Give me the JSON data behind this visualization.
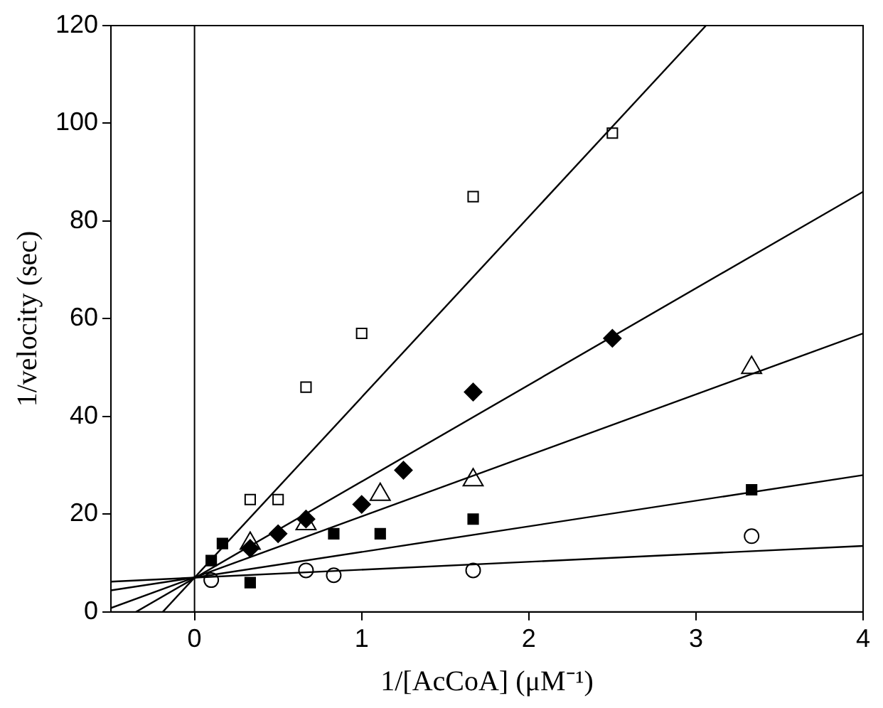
{
  "chart_data": {
    "type": "scatter",
    "xlabel": "1/[AcCoA] (μM⁻¹)",
    "ylabel": "1/velocity (sec)",
    "xlim": [
      -0.5,
      4
    ],
    "xticks": [
      0,
      1,
      2,
      3,
      4
    ],
    "ylim": [
      0,
      120
    ],
    "yticks": [
      0,
      20,
      40,
      60,
      80,
      100,
      120
    ],
    "grid": false,
    "legend": false,
    "ref_lines": [
      {
        "axis": "x",
        "value": 0,
        "color": "#000000"
      }
    ],
    "series": [
      {
        "marker": "square",
        "color": "#ffffff",
        "x": [
          0.333,
          0.5,
          0.667,
          1,
          1.667,
          2.5
        ],
        "values": [
          23,
          23,
          46,
          57,
          85,
          98
        ]
      },
      {
        "marker": "diamond",
        "color": "#000000",
        "x": [
          0.333,
          0.5,
          0.667,
          1,
          1.25,
          1.667,
          2.5
        ],
        "values": [
          13,
          16,
          19,
          22,
          29,
          45,
          56
        ]
      },
      {
        "marker": "triangle",
        "color": "#ffffff",
        "x": [
          0.333,
          0.667,
          1.111,
          1.667,
          3.333
        ],
        "values": [
          14,
          18,
          24,
          27,
          50
        ]
      },
      {
        "marker": "square",
        "color": "#000000",
        "x": [
          0.1,
          0.167,
          0.333,
          0.833,
          1.111,
          1.667,
          3.333
        ],
        "values": [
          10.5,
          14,
          6,
          16,
          16,
          19,
          25
        ]
      },
      {
        "marker": "circle",
        "color": "#ffffff",
        "x": [
          0.1,
          0.667,
          0.833,
          1.667,
          3.333
        ],
        "values": [
          6.5,
          8.5,
          7.5,
          8.5,
          15.5
        ]
      },
      {
        "type": "line",
        "marker": "none",
        "color": "#000000",
        "x": [
          -0.19,
          3.06
        ],
        "values": [
          0,
          120
        ]
      },
      {
        "type": "line",
        "marker": "none",
        "color": "#000000",
        "x": [
          -0.35,
          4
        ],
        "values": [
          0,
          86
        ]
      },
      {
        "type": "line",
        "marker": "none",
        "color": "#000000",
        "x": [
          -0.5,
          4
        ],
        "values": [
          0.8,
          57
        ]
      },
      {
        "type": "line",
        "marker": "none",
        "color": "#000000",
        "x": [
          -0.5,
          4
        ],
        "values": [
          4.4,
          28
        ]
      },
      {
        "type": "line",
        "marker": "none",
        "color": "#000000",
        "x": [
          -0.5,
          4
        ],
        "values": [
          6.2,
          13.5
        ]
      }
    ]
  }
}
